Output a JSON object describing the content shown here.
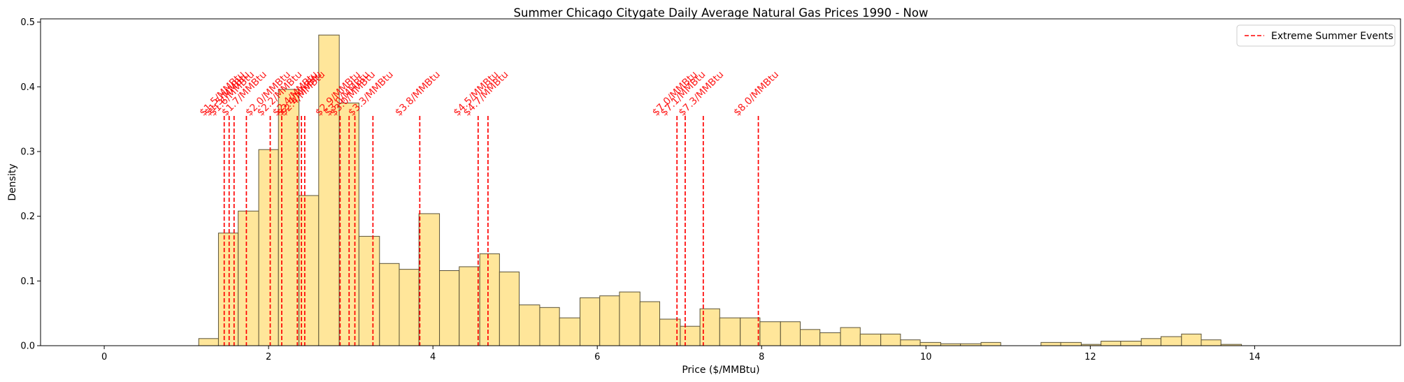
{
  "chart_data": {
    "type": "bar",
    "title": "Summer Chicago Citygate Daily Average Natural Gas Prices 1990 - Now",
    "xlabel": "Price ($/MMBtu)",
    "ylabel": "Density",
    "xlim": [
      -0.775,
      15.775
    ],
    "ylim": [
      0,
      0.505
    ],
    "xticks": [
      0,
      2,
      4,
      6,
      8,
      10,
      12,
      14
    ],
    "yticks": [
      0.0,
      0.1,
      0.2,
      0.3,
      0.4,
      0.5
    ],
    "xtick_labels": [
      "0",
      "2",
      "4",
      "6",
      "8",
      "10",
      "12",
      "14"
    ],
    "ytick_labels": [
      "0.0",
      "0.1",
      "0.2",
      "0.3",
      "0.4",
      "0.5"
    ],
    "grid": false,
    "legend_position": "top-right",
    "colors": {
      "bar_fill": "#ffe69a",
      "bar_edge": "#5a5236",
      "event_line": "#ff0000"
    },
    "histogram": {
      "bins": [
        {
          "x0": 1.15,
          "x1": 1.39,
          "density": 0.011
        },
        {
          "x0": 1.39,
          "x1": 1.63,
          "density": 0.174
        },
        {
          "x0": 1.63,
          "x1": 1.88,
          "density": 0.208
        },
        {
          "x0": 1.88,
          "x1": 2.12,
          "density": 0.303
        },
        {
          "x0": 2.12,
          "x1": 2.37,
          "density": 0.396
        },
        {
          "x0": 2.37,
          "x1": 2.61,
          "density": 0.232
        },
        {
          "x0": 2.61,
          "x1": 2.86,
          "density": 0.48
        },
        {
          "x0": 2.86,
          "x1": 3.1,
          "density": 0.375
        },
        {
          "x0": 3.1,
          "x1": 3.35,
          "density": 0.169
        },
        {
          "x0": 3.35,
          "x1": 3.59,
          "density": 0.127
        },
        {
          "x0": 3.59,
          "x1": 3.83,
          "density": 0.118
        },
        {
          "x0": 3.83,
          "x1": 4.08,
          "density": 0.204
        },
        {
          "x0": 4.08,
          "x1": 4.32,
          "density": 0.116
        },
        {
          "x0": 4.32,
          "x1": 4.57,
          "density": 0.122
        },
        {
          "x0": 4.57,
          "x1": 4.81,
          "density": 0.142
        },
        {
          "x0": 4.81,
          "x1": 5.05,
          "density": 0.114
        },
        {
          "x0": 5.05,
          "x1": 5.3,
          "density": 0.063
        },
        {
          "x0": 5.3,
          "x1": 5.54,
          "density": 0.059
        },
        {
          "x0": 5.54,
          "x1": 5.79,
          "density": 0.043
        },
        {
          "x0": 5.79,
          "x1": 6.03,
          "density": 0.074
        },
        {
          "x0": 6.03,
          "x1": 6.27,
          "density": 0.077
        },
        {
          "x0": 6.27,
          "x1": 6.52,
          "density": 0.083
        },
        {
          "x0": 6.52,
          "x1": 6.76,
          "density": 0.068
        },
        {
          "x0": 6.76,
          "x1": 7.01,
          "density": 0.041
        },
        {
          "x0": 7.01,
          "x1": 7.25,
          "density": 0.03
        },
        {
          "x0": 7.25,
          "x1": 7.49,
          "density": 0.057
        },
        {
          "x0": 7.49,
          "x1": 7.74,
          "density": 0.043
        },
        {
          "x0": 7.74,
          "x1": 7.98,
          "density": 0.043
        },
        {
          "x0": 7.98,
          "x1": 8.23,
          "density": 0.037
        },
        {
          "x0": 8.23,
          "x1": 8.47,
          "density": 0.037
        },
        {
          "x0": 8.47,
          "x1": 8.71,
          "density": 0.025
        },
        {
          "x0": 8.71,
          "x1": 8.96,
          "density": 0.02
        },
        {
          "x0": 8.96,
          "x1": 9.2,
          "density": 0.028
        },
        {
          "x0": 9.2,
          "x1": 9.45,
          "density": 0.018
        },
        {
          "x0": 9.45,
          "x1": 9.69,
          "density": 0.018
        },
        {
          "x0": 9.69,
          "x1": 9.93,
          "density": 0.009
        },
        {
          "x0": 9.93,
          "x1": 10.18,
          "density": 0.005
        },
        {
          "x0": 10.18,
          "x1": 10.42,
          "density": 0.003
        },
        {
          "x0": 10.42,
          "x1": 10.67,
          "density": 0.003
        },
        {
          "x0": 10.67,
          "x1": 10.91,
          "density": 0.005
        },
        {
          "x0": 10.91,
          "x1": 11.15,
          "density": 0.0
        },
        {
          "x0": 11.15,
          "x1": 11.4,
          "density": 0.0
        },
        {
          "x0": 11.4,
          "x1": 11.64,
          "density": 0.005
        },
        {
          "x0": 11.64,
          "x1": 11.89,
          "density": 0.005
        },
        {
          "x0": 11.89,
          "x1": 12.13,
          "density": 0.002
        },
        {
          "x0": 12.13,
          "x1": 12.37,
          "density": 0.007
        },
        {
          "x0": 12.37,
          "x1": 12.62,
          "density": 0.007
        },
        {
          "x0": 12.62,
          "x1": 12.86,
          "density": 0.011
        },
        {
          "x0": 12.86,
          "x1": 13.11,
          "density": 0.014
        },
        {
          "x0": 13.11,
          "x1": 13.35,
          "density": 0.018
        },
        {
          "x0": 13.35,
          "x1": 13.59,
          "density": 0.009
        },
        {
          "x0": 13.59,
          "x1": 13.84,
          "density": 0.002
        }
      ],
      "flat_x_range": [
        0,
        15
      ]
    },
    "events": {
      "legend_label": "Extreme Summer Events",
      "line_top": 0.355,
      "items": [
        {
          "x": 1.46,
          "label": "$1.5/MMBtu"
        },
        {
          "x": 1.52,
          "label": "$1.5/MMBtu"
        },
        {
          "x": 1.58,
          "label": "$1.6/MMBtu"
        },
        {
          "x": 1.73,
          "label": "$1.7/MMBtu"
        },
        {
          "x": 2.02,
          "label": "$2.0/MMBtu"
        },
        {
          "x": 2.16,
          "label": "$2.2/MMBtu"
        },
        {
          "x": 2.35,
          "label": "$2.4/MMBtu"
        },
        {
          "x": 2.4,
          "label": "$2.4/MMBtu"
        },
        {
          "x": 2.44,
          "label": "$2.4/MMBtu"
        },
        {
          "x": 2.87,
          "label": "$2.9/MMBtu"
        },
        {
          "x": 2.98,
          "label": "$3.0/MMBtu"
        },
        {
          "x": 3.05,
          "label": "$3.0/MMBtu"
        },
        {
          "x": 3.27,
          "label": "$3.3/MMBtu"
        },
        {
          "x": 3.84,
          "label": "$3.8/MMBtu"
        },
        {
          "x": 4.55,
          "label": "$4.5/MMBtu"
        },
        {
          "x": 4.67,
          "label": "$4.7/MMBtu"
        },
        {
          "x": 6.97,
          "label": "$7.0/MMBtu"
        },
        {
          "x": 7.07,
          "label": "$7.1/MMBtu"
        },
        {
          "x": 7.29,
          "label": "$7.3/MMBtu"
        },
        {
          "x": 7.96,
          "label": "$8.0/MMBtu"
        }
      ]
    }
  }
}
